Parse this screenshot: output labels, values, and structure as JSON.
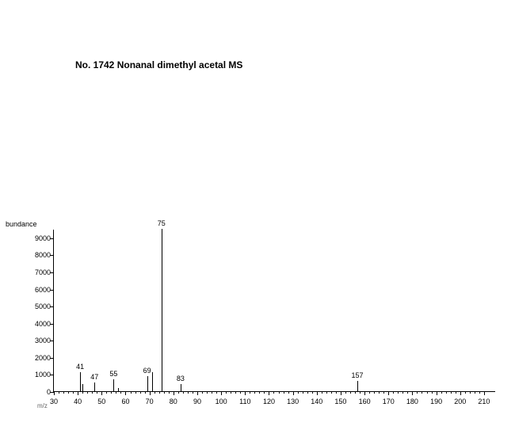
{
  "title": "No. 1742 Nonanal dimethyl acetal MS",
  "chart": {
    "type": "mass-spectrum",
    "y_axis_title": "bundance",
    "x_axis_name": "m/z",
    "ylim": [
      0,
      9500
    ],
    "xlim": [
      30,
      215
    ],
    "y_ticks": [
      0,
      1000,
      2000,
      3000,
      4000,
      5000,
      6000,
      7000,
      8000,
      9000
    ],
    "x_ticks": [
      30,
      40,
      50,
      60,
      70,
      80,
      90,
      100,
      110,
      120,
      130,
      140,
      150,
      160,
      170,
      180,
      190,
      200,
      210
    ],
    "peaks": [
      {
        "mz": 41,
        "intensity": 1100,
        "label": "41"
      },
      {
        "mz": 42,
        "intensity": 400,
        "label": null
      },
      {
        "mz": 47,
        "intensity": 500,
        "label": "47"
      },
      {
        "mz": 55,
        "intensity": 700,
        "label": "55"
      },
      {
        "mz": 57,
        "intensity": 200,
        "label": null
      },
      {
        "mz": 69,
        "intensity": 900,
        "label": "69"
      },
      {
        "mz": 71,
        "intensity": 1100,
        "label": null
      },
      {
        "mz": 75,
        "intensity": 9500,
        "label": "75"
      },
      {
        "mz": 83,
        "intensity": 400,
        "label": "83"
      },
      {
        "mz": 157,
        "intensity": 600,
        "label": "157"
      }
    ],
    "background_color": "#ffffff",
    "axis_color": "#000000",
    "peak_color": "#000000",
    "font_size_labels": 9,
    "font_size_title": 12
  }
}
